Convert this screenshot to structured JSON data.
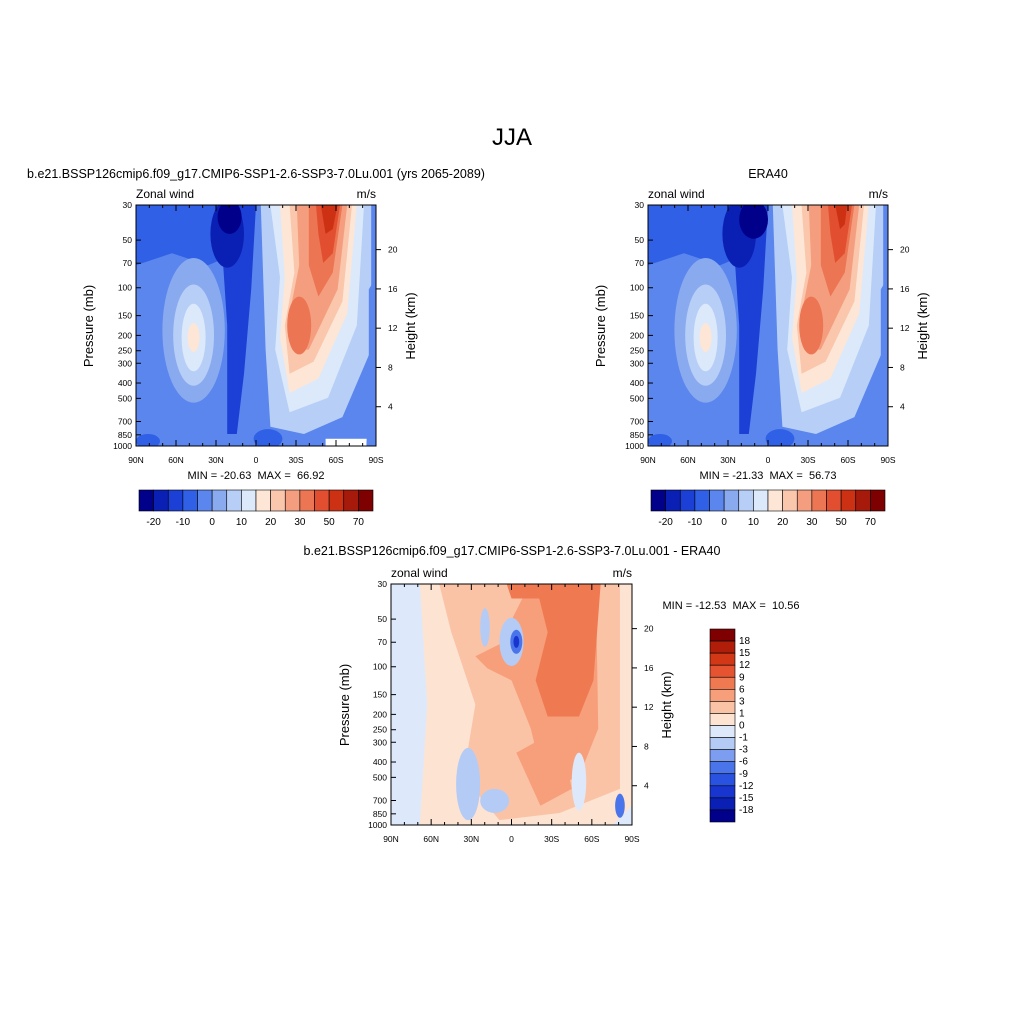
{
  "title": "JJA",
  "palette_wind": [
    "#00008b",
    "#0a1fb4",
    "#1c3fd6",
    "#2f60e6",
    "#5a86ee",
    "#8aaaf0",
    "#b7cff6",
    "#dce9fb",
    "#fde6d6",
    "#fac6ac",
    "#f59e7f",
    "#ec7553",
    "#e24f30",
    "#cd3114",
    "#a51a0a",
    "#7f0000"
  ],
  "palette_diff": [
    "#00008b",
    "#0a1fb4",
    "#1836cf",
    "#2a52e0",
    "#4a75ea",
    "#7d9ef0",
    "#b4cbf6",
    "#dde9fb",
    "#fde4d2",
    "#fbc3a6",
    "#f79f7b",
    "#ef7a52",
    "#e55330",
    "#d23716",
    "#b01e0a",
    "#7f0000"
  ],
  "chart_data": [
    {
      "type": "heatmap",
      "title": "b.e21.BSSP126cmip6.f09_g17.CMIP6-SSP1-2.6-SSP3-7.0Lu.001 (yrs 2065-2089)",
      "left_label": "Zonal wind",
      "units": "m/s",
      "ylabel": "Pressure (mb)",
      "y2label": "Height (km)",
      "x_ticks": [
        "90N",
        "60N",
        "30N",
        "0",
        "30S",
        "60S",
        "90S"
      ],
      "y_ticks": [
        "30",
        "50",
        "70",
        "100",
        "150",
        "200",
        "250",
        "300",
        "400",
        "500",
        "700",
        "850",
        "1000"
      ],
      "y2_ticks": [
        "20",
        "16",
        "12",
        "8",
        "4"
      ],
      "ylim": [
        1000,
        30
      ],
      "stats": "MIN = -20.63  MAX =  66.92",
      "colorbar_levels": [
        "-20",
        "-10",
        "0",
        "10",
        "20",
        "30",
        "50",
        "70"
      ],
      "features": [
        {
          "lat": 30,
          "p": 30,
          "value": -20
        },
        {
          "lat": 45,
          "p": 200,
          "value": 20
        },
        {
          "lat": -55,
          "p": 40,
          "value": 67
        },
        {
          "lat": -35,
          "p": 200,
          "value": 40
        }
      ]
    },
    {
      "type": "heatmap",
      "title": "ERA40",
      "left_label": "zonal wind",
      "units": "m/s",
      "ylabel": "Pressure (mb)",
      "y2label": "Height (km)",
      "x_ticks": [
        "90N",
        "60N",
        "30N",
        "0",
        "30S",
        "60S",
        "90S"
      ],
      "y_ticks": [
        "30",
        "50",
        "70",
        "100",
        "150",
        "200",
        "250",
        "300",
        "400",
        "500",
        "700",
        "850",
        "1000"
      ],
      "y2_ticks": [
        "20",
        "16",
        "12",
        "8",
        "4"
      ],
      "ylim": [
        1000,
        30
      ],
      "stats": "MIN = -21.33  MAX =  56.73",
      "colorbar_levels": [
        "-20",
        "-10",
        "0",
        "10",
        "20",
        "30",
        "50",
        "70"
      ],
      "features": [
        {
          "lat": 20,
          "p": 30,
          "value": -21
        },
        {
          "lat": 45,
          "p": 200,
          "value": 20
        },
        {
          "lat": -55,
          "p": 40,
          "value": 57
        },
        {
          "lat": -35,
          "p": 200,
          "value": 40
        }
      ]
    },
    {
      "type": "heatmap",
      "title": "b.e21.BSSP126cmip6.f09_g17.CMIP6-SSP1-2.6-SSP3-7.0Lu.001 - ERA40",
      "left_label": "zonal wind",
      "units": "m/s",
      "ylabel": "Pressure (mb)",
      "y2label": "Height (km)",
      "x_ticks": [
        "90N",
        "60N",
        "30N",
        "0",
        "30S",
        "60S",
        "90S"
      ],
      "y_ticks": [
        "30",
        "50",
        "70",
        "100",
        "150",
        "200",
        "250",
        "300",
        "400",
        "500",
        "700",
        "850",
        "1000"
      ],
      "y2_ticks": [
        "20",
        "16",
        "12",
        "8",
        "4"
      ],
      "ylim": [
        1000,
        30
      ],
      "stats": "MIN = -12.53  MAX =  10.56",
      "colorbar_levels": [
        "18",
        "15",
        "12",
        "9",
        "6",
        "3",
        "1",
        "0",
        "-1",
        "-3",
        "-6",
        "-9",
        "-12",
        "-15",
        "-18"
      ],
      "features": [
        {
          "lat": -50,
          "p": 60,
          "value": 10
        },
        {
          "lat": 5,
          "p": 70,
          "value": -12
        },
        {
          "lat": 0,
          "p": 150,
          "value": 6
        }
      ]
    }
  ]
}
